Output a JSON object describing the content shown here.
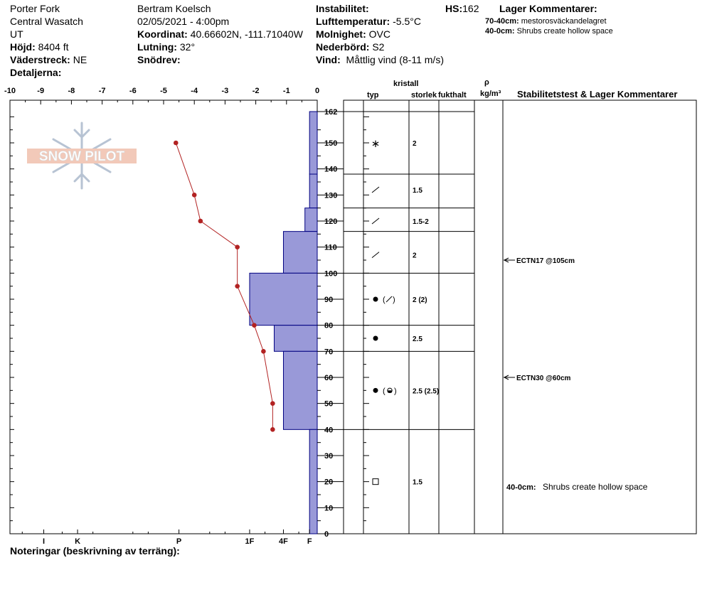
{
  "header": {
    "location": "Porter Fork",
    "range": "Central Wasatch",
    "state": "UT",
    "elevation_label": "Höjd:",
    "elevation_value": "8404 ft",
    "aspect_label": "Väderstreck:",
    "aspect_value": "NE",
    "details_label": "Detaljerna:",
    "observer": "Bertram Koelsch",
    "datetime": "02/05/2021 - 4:00pm",
    "coord_label": "Koordinat:",
    "coord_value": "40.66602N, -111.71040W",
    "slope_label": "Lutning:",
    "slope_value": "32°",
    "drift_label": "Snödrev:",
    "instability_label": "Instabilitet:",
    "airtemp_label": "Lufttemperatur:",
    "airtemp_value": "-5.5°C",
    "sky_label": "Molnighet:",
    "sky_value": "OVC",
    "precip_label": "Nederbörd:",
    "precip_value": "S2",
    "wind_label": "Vind:",
    "wind_value": "Måttlig vind (8-11 m/s)",
    "hs_label": "HS:",
    "hs_value": "162",
    "layer_comments_title": "Lager Kommentarer:",
    "layer_comments": [
      {
        "range": "70-40cm:",
        "text": "mestorosväckandelagret"
      },
      {
        "range": "40-0cm:",
        "text": "Shrubs create hollow space"
      }
    ]
  },
  "columns": {
    "crystal": "kristall",
    "type": "typ",
    "size": "storlek",
    "moisture": "fukthalt",
    "rho": "ρ",
    "density_unit": "kg/m³",
    "stability": "Stabilitetstest & Lager Kommentarer"
  },
  "footer": {
    "notes_label": "Noteringar (beskrivning av terräng):"
  },
  "logo_text": "SNOW PILOT",
  "colors": {
    "hardness_fill": "#9999d8",
    "hardness_stroke": "#000080",
    "temp_line": "#b22222"
  },
  "chart_data": {
    "type": "snow-profile",
    "temperature_axis": {
      "ticks": [
        -10,
        -9,
        -8,
        -7,
        -6,
        -5,
        -4,
        -3,
        -2,
        -1,
        0
      ],
      "labels": [
        "-10",
        "-9",
        "-8",
        "-7",
        "-6",
        "-5",
        "-4",
        "-3",
        "-2",
        "-1",
        "0"
      ],
      "range": [
        -10,
        0
      ]
    },
    "height_axis": {
      "range": [
        0,
        162
      ],
      "ticks": [
        0,
        10,
        20,
        30,
        40,
        50,
        60,
        70,
        80,
        90,
        100,
        110,
        120,
        130,
        140,
        150,
        162
      ],
      "labels": [
        "0",
        "10",
        "20",
        "30",
        "40",
        "50",
        "60",
        "70",
        "80",
        "90",
        "100",
        "110",
        "120",
        "130",
        "140",
        "150",
        "162"
      ]
    },
    "hardness_axis": {
      "labels": [
        "I",
        "K",
        "P",
        "1F",
        "4F",
        "F"
      ],
      "temp_equiv": [
        -8.9,
        -7.8,
        -4.5,
        -2.2,
        -1.1,
        -0.25
      ]
    },
    "temperature_profile": {
      "height": [
        150,
        130,
        120,
        110,
        95,
        80,
        70,
        50,
        40
      ],
      "temp": [
        -4.6,
        -4.0,
        -3.8,
        -2.6,
        -2.6,
        -2.05,
        -1.75,
        -1.45,
        -1.45
      ]
    },
    "hardness_layers": [
      {
        "top": 162,
        "bottom": 138,
        "temp": -0.25
      },
      {
        "top": 138,
        "bottom": 125,
        "temp": -0.25
      },
      {
        "top": 125,
        "bottom": 116,
        "temp": -0.4
      },
      {
        "top": 116,
        "bottom": 100,
        "temp": -1.1
      },
      {
        "top": 100,
        "bottom": 80,
        "temp": -2.2
      },
      {
        "top": 80,
        "bottom": 70,
        "temp": -1.4
      },
      {
        "top": 70,
        "bottom": 40,
        "temp": -1.1
      },
      {
        "top": 40,
        "bottom": 0,
        "temp": -0.25
      }
    ],
    "layer_boundaries": [
      162,
      138,
      125,
      116,
      100,
      80,
      70,
      40
    ],
    "layers": [
      {
        "mid": 150,
        "size": "2",
        "grain": "newsnow"
      },
      {
        "mid": 132,
        "size": "1.5",
        "grain": "slash"
      },
      {
        "mid": 120,
        "size": "1.5-2",
        "grain": "slash"
      },
      {
        "mid": 107,
        "size": "2",
        "grain": "slash"
      },
      {
        "mid": 90,
        "size": "2 (2)",
        "grain": "dot-slash"
      },
      {
        "mid": 75,
        "size": "2.5",
        "grain": "dot"
      },
      {
        "mid": 55,
        "size": "2.5 (2.5)",
        "grain": "dot-melt"
      },
      {
        "mid": 20,
        "size": "1.5",
        "grain": "square"
      }
    ],
    "stability_tests": [
      {
        "height": 105,
        "label": "ECTN17 @105cm"
      },
      {
        "height": 60,
        "label": "ECTN30 @60cm"
      }
    ],
    "stability_comment": {
      "height": 18,
      "range": "40-0cm:",
      "text": "Shrubs create hollow space"
    }
  }
}
